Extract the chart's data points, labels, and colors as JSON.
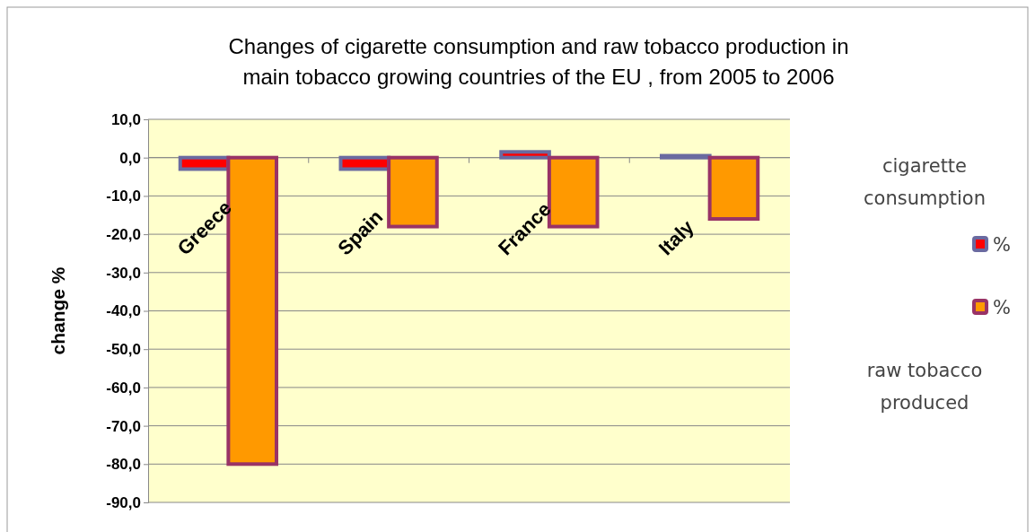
{
  "chart_data": {
    "type": "bar",
    "title": "Changes of cigarette consumption and  raw tobacco  production  in main tobacco growing countries of  the EU , from  2005 to 2006",
    "ylabel": "change %",
    "categories": [
      "Greece",
      "Spain",
      "France",
      "Italy"
    ],
    "series": [
      {
        "name": "%",
        "color": "#ff0000",
        "values": [
          -3.0,
          -3.0,
          1.5,
          0.5
        ]
      },
      {
        "name": "%",
        "color": "#ff9900",
        "values": [
          -80,
          -18,
          -18,
          -16
        ]
      }
    ],
    "ylim": [
      -90,
      10
    ],
    "yticks": [
      {
        "value": 10,
        "label": "10,0"
      },
      {
        "value": 0,
        "label": "0,0"
      },
      {
        "value": -10,
        "label": "-10,0"
      },
      {
        "value": -20,
        "label": "-20,0"
      },
      {
        "value": -30,
        "label": "-30,0"
      },
      {
        "value": -40,
        "label": "-40,0"
      },
      {
        "value": -50,
        "label": "-50,0"
      },
      {
        "value": -60,
        "label": "-60,0"
      },
      {
        "value": -70,
        "label": "-70,0"
      },
      {
        "value": -80,
        "label": "-80,0"
      },
      {
        "value": -90,
        "label": "-90,0"
      }
    ],
    "grid": "y",
    "legend": "right",
    "annotations": [
      "cigarette consumption",
      "raw tobacco produced"
    ]
  }
}
